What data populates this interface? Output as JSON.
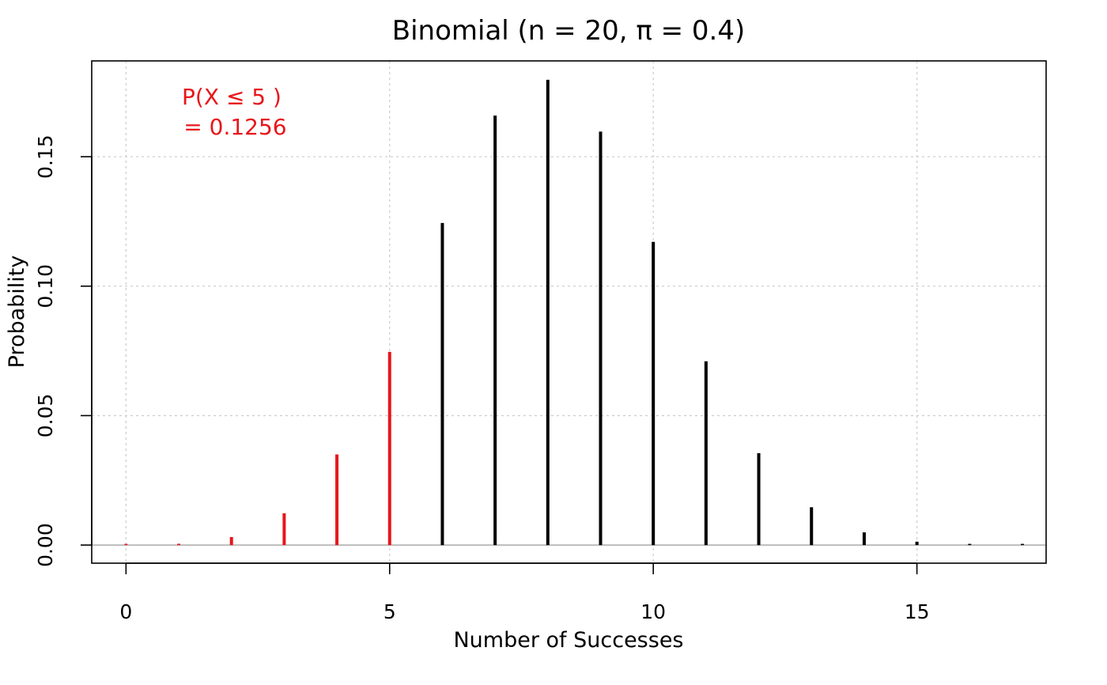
{
  "chart_data": {
    "type": "bar",
    "title": "Binomial (n = 20, π = 0.4)",
    "xlabel": "Number of Successes",
    "ylabel": "Probability",
    "x": [
      0,
      1,
      2,
      3,
      4,
      5,
      6,
      7,
      8,
      9,
      10,
      11,
      12,
      13,
      14,
      15,
      16,
      17
    ],
    "values": [
      0.0,
      0.0005,
      0.0031,
      0.0123,
      0.035,
      0.0746,
      0.1244,
      0.1659,
      0.1797,
      0.1597,
      0.1171,
      0.071,
      0.0355,
      0.0146,
      0.0049,
      0.0013,
      0.0003,
      0.0
    ],
    "highlight_max_x": 5,
    "highlight_color": "#e8161b",
    "base_color": "#000000",
    "xlim": [
      -0.65,
      17.45
    ],
    "ylim": [
      -0.007,
      0.187
    ],
    "xticks": [
      0,
      5,
      10,
      15
    ],
    "xtick_labels": [
      "0",
      "5",
      "10",
      "15"
    ],
    "yticks": [
      0.0,
      0.05,
      0.1,
      0.15
    ],
    "ytick_labels": [
      "0.00",
      "0.05",
      "0.10",
      "0.15"
    ],
    "grid": true,
    "annotation": {
      "line1": "P(X ≤ 5 )",
      "line2": " = 0.1256",
      "color": "#e8161b"
    }
  }
}
